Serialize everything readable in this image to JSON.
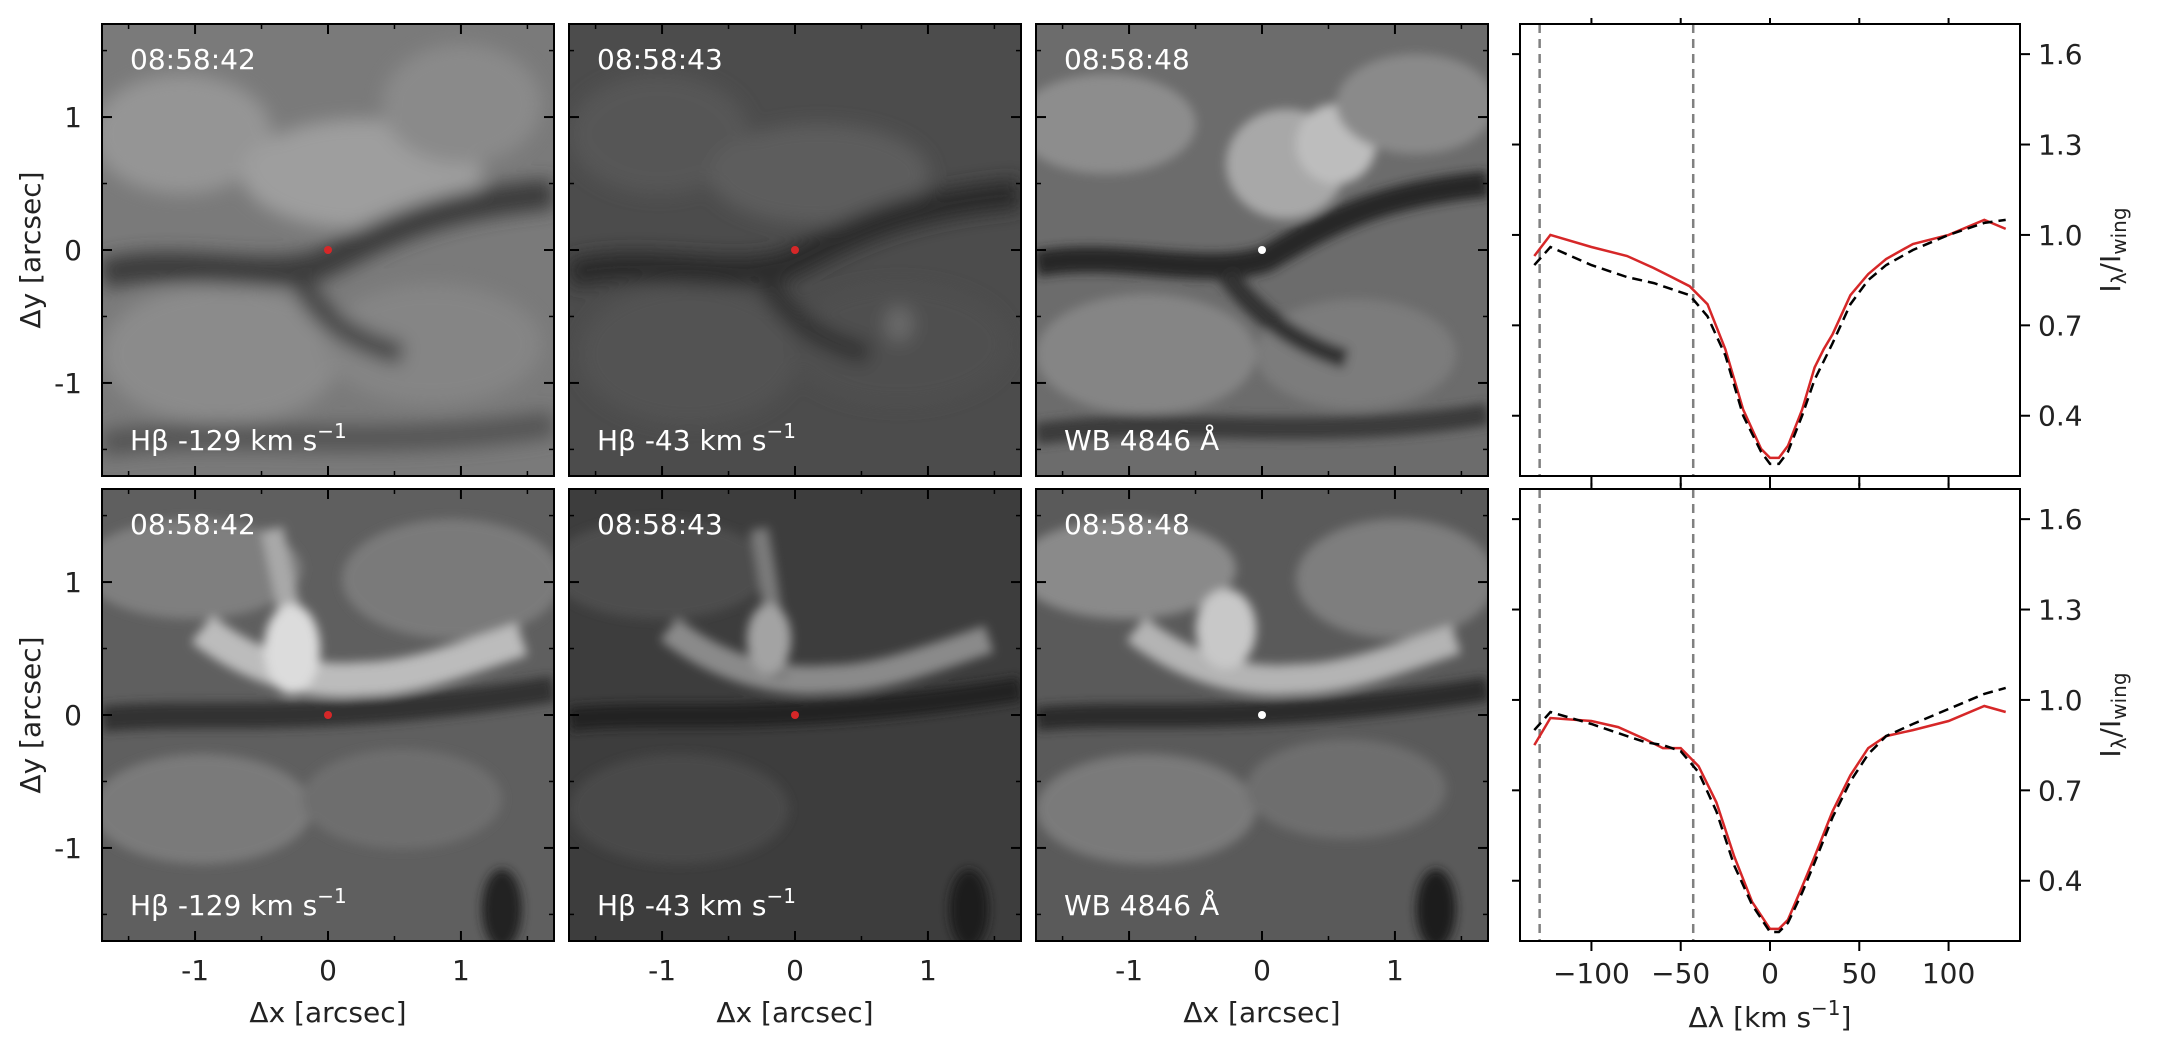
{
  "colors": {
    "observed": "#d62728",
    "reference": "#000000",
    "marker_image": "#d62728",
    "marker_wb": "#ffffff",
    "vline": "#808080"
  },
  "image_panels": {
    "x_ticks": [
      "-1",
      "0",
      "1"
    ],
    "y_ticks": [
      "1",
      "0",
      "-1"
    ],
    "x_range": [
      -1.7,
      1.7
    ],
    "y_range": [
      -1.7,
      1.7
    ],
    "x_label": "Δx [arcsec]",
    "y_label": "Δy [arcsec]",
    "rows": [
      [
        {
          "time": "08:58:42",
          "label_main": "Hβ -129 km s",
          "label_sup": "−1",
          "marker": "red"
        },
        {
          "time": "08:58:43",
          "label_main": "Hβ -43 km s",
          "label_sup": "−1",
          "marker": "red"
        },
        {
          "time": "08:58:48",
          "label_main": "WB 4846 Å",
          "label_sup": "",
          "marker": "white"
        }
      ],
      [
        {
          "time": "08:58:42",
          "label_main": "Hβ -129 km s",
          "label_sup": "−1",
          "marker": "red"
        },
        {
          "time": "08:58:43",
          "label_main": "Hβ -43 km s",
          "label_sup": "−1",
          "marker": "red"
        },
        {
          "time": "08:58:48",
          "label_main": "WB 4846 Å",
          "label_sup": "",
          "marker": "white"
        }
      ]
    ]
  },
  "chart_data": [
    {
      "type": "line",
      "xlim": [
        -140,
        140
      ],
      "ylim": [
        0.2,
        1.7
      ],
      "xticks": [
        -100,
        -50,
        0,
        50,
        100
      ],
      "yticks": [
        0.4,
        0.7,
        1.0,
        1.3,
        1.6
      ],
      "ytick_labels": [
        "0.4",
        "0.7",
        "1.0",
        "1.3",
        "1.6"
      ],
      "ylabel": "Iλ/Iwing",
      "vlines": [
        -129,
        -43
      ],
      "series": [
        {
          "style": "solid-red",
          "x": [
            -132,
            -123,
            -100,
            -80,
            -65,
            -55,
            -45,
            -35,
            -25,
            -15,
            -5,
            0,
            5,
            10,
            18,
            25,
            30,
            35,
            45,
            55,
            65,
            80,
            100,
            120,
            132
          ],
          "y": [
            0.93,
            1.0,
            0.96,
            0.93,
            0.89,
            0.86,
            0.83,
            0.77,
            0.62,
            0.42,
            0.29,
            0.26,
            0.26,
            0.3,
            0.42,
            0.56,
            0.62,
            0.67,
            0.8,
            0.87,
            0.92,
            0.97,
            1.0,
            1.05,
            1.02
          ]
        },
        {
          "style": "dashed-black",
          "x": [
            -132,
            -123,
            -100,
            -80,
            -65,
            -55,
            -45,
            -35,
            -25,
            -15,
            -5,
            0,
            5,
            10,
            18,
            25,
            30,
            35,
            45,
            55,
            65,
            80,
            100,
            120,
            132
          ],
          "y": [
            0.9,
            0.96,
            0.9,
            0.86,
            0.84,
            0.82,
            0.8,
            0.73,
            0.6,
            0.4,
            0.28,
            0.24,
            0.24,
            0.28,
            0.4,
            0.52,
            0.58,
            0.64,
            0.77,
            0.85,
            0.9,
            0.95,
            1.0,
            1.04,
            1.05
          ]
        }
      ]
    },
    {
      "type": "line",
      "xlim": [
        -140,
        140
      ],
      "ylim": [
        0.2,
        1.7
      ],
      "xticks": [
        -100,
        -50,
        0,
        50,
        100
      ],
      "xtick_labels": [
        "−100",
        "−50",
        "0",
        "50",
        "100"
      ],
      "yticks": [
        0.4,
        0.7,
        1.0,
        1.3,
        1.6
      ],
      "ytick_labels": [
        "0.4",
        "0.7",
        "1.0",
        "1.3",
        "1.6"
      ],
      "xlabel": "Δλ [km s−1]",
      "ylabel": "Iλ/Iwing",
      "vlines": [
        -129,
        -43
      ],
      "series": [
        {
          "style": "solid-red",
          "x": [
            -132,
            -123,
            -100,
            -85,
            -70,
            -60,
            -50,
            -40,
            -30,
            -20,
            -10,
            0,
            5,
            10,
            18,
            25,
            35,
            45,
            55,
            65,
            80,
            100,
            120,
            132
          ],
          "y": [
            0.85,
            0.94,
            0.93,
            0.91,
            0.87,
            0.84,
            0.84,
            0.78,
            0.66,
            0.48,
            0.33,
            0.24,
            0.24,
            0.27,
            0.38,
            0.48,
            0.63,
            0.75,
            0.84,
            0.88,
            0.9,
            0.93,
            0.98,
            0.96
          ]
        },
        {
          "style": "dashed-black",
          "x": [
            -132,
            -123,
            -100,
            -85,
            -70,
            -60,
            -50,
            -40,
            -30,
            -20,
            -10,
            0,
            5,
            10,
            18,
            25,
            35,
            45,
            55,
            65,
            80,
            100,
            120,
            132
          ],
          "y": [
            0.9,
            0.96,
            0.92,
            0.89,
            0.86,
            0.85,
            0.83,
            0.76,
            0.63,
            0.45,
            0.32,
            0.23,
            0.23,
            0.26,
            0.36,
            0.46,
            0.61,
            0.73,
            0.82,
            0.88,
            0.92,
            0.97,
            1.02,
            1.04
          ]
        }
      ]
    }
  ]
}
